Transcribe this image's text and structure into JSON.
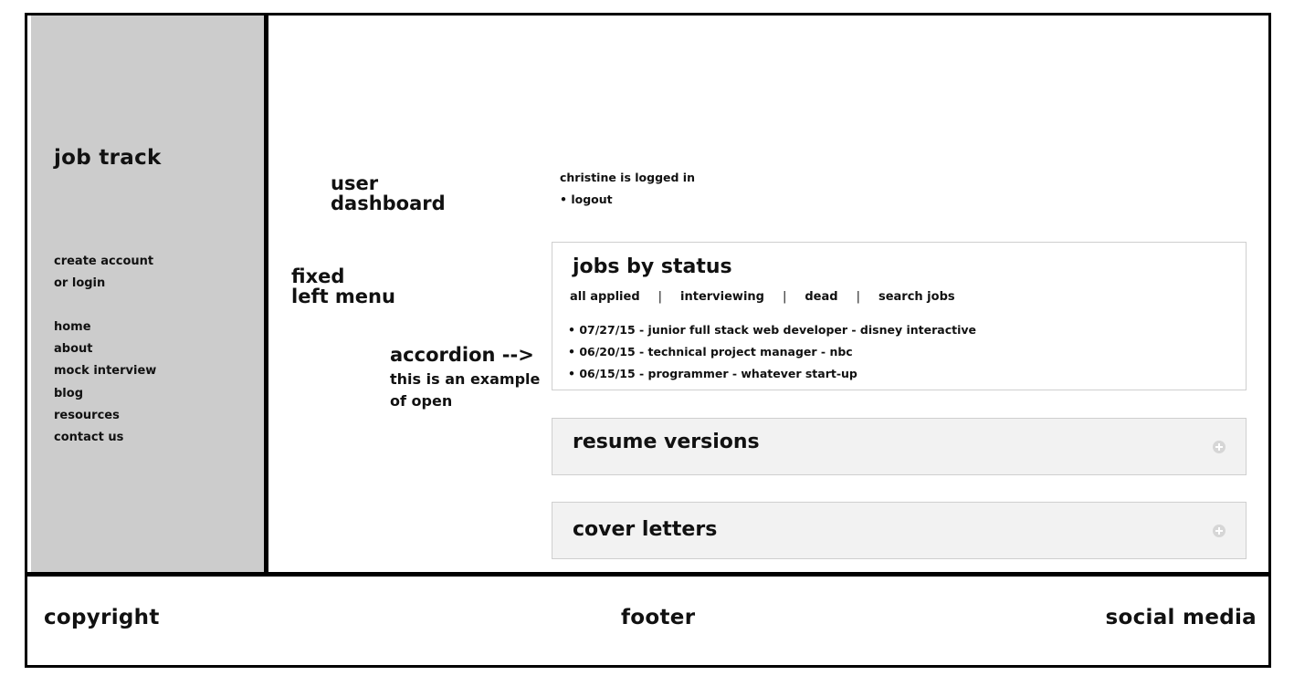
{
  "sidebar": {
    "brand": "job track",
    "account_links": [
      "create account",
      "or login"
    ],
    "nav_links": [
      "home",
      "about",
      "mock interview",
      "blog",
      "resources",
      "contact us"
    ]
  },
  "annotations": {
    "user_dashboard": [
      "user",
      "dashboard"
    ],
    "fixed_left_menu": [
      "fixed",
      "left menu"
    ],
    "accordion_title": "accordion -->",
    "accordion_note": [
      "this is an example",
      "of open"
    ]
  },
  "user": {
    "status": "christine is logged in",
    "logout": "• logout"
  },
  "panels": {
    "jobs": {
      "title": "jobs by status",
      "tabs": [
        "all applied",
        "interviewing",
        "dead",
        "search jobs"
      ],
      "separator": "|",
      "items": [
        "• 07/27/15 - junior full stack web developer - disney interactive",
        "• 06/20/15 - technical project manager - nbc",
        "• 06/15/15 - programmer - whatever start-up"
      ]
    },
    "resume": {
      "title": "resume versions"
    },
    "cover": {
      "title": "cover letters"
    }
  },
  "footer": {
    "left": "copyright",
    "center": "footer",
    "right": "social media"
  }
}
